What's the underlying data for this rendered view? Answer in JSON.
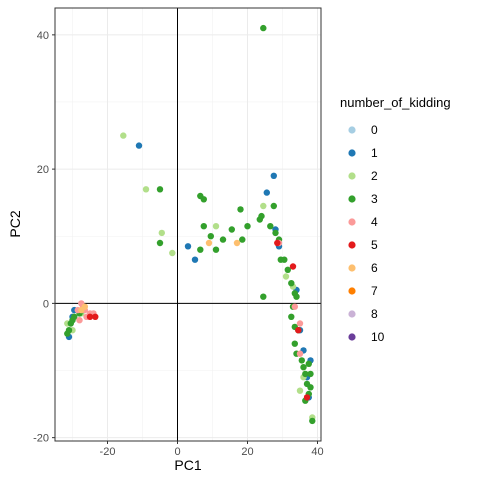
{
  "chart_data": {
    "type": "scatter",
    "title": "",
    "xlabel": "PC1",
    "ylabel": "PC2",
    "xlim": [
      -35,
      41
    ],
    "ylim": [
      -20.5,
      44
    ],
    "x_ticks": [
      -20,
      0,
      20,
      40
    ],
    "y_ticks": [
      -20,
      0,
      20,
      40
    ],
    "x_tick_labels": [
      "-20",
      "0",
      "20",
      "40"
    ],
    "y_tick_labels": [
      "-20",
      "0",
      "20",
      "40"
    ],
    "grid": true,
    "reference_lines": {
      "x": 0,
      "y": 0
    },
    "legend": {
      "title": "number_of_kidding",
      "position": "right"
    },
    "series": [
      {
        "name": "0",
        "color": "#a6cee3",
        "points": []
      },
      {
        "name": "1",
        "color": "#1f78b4",
        "points": [
          [
            -11,
            23.5
          ],
          [
            3,
            8.5
          ],
          [
            5,
            6.5
          ],
          [
            25.5,
            16.5
          ],
          [
            27.5,
            19
          ],
          [
            28,
            11
          ],
          [
            29,
            8.5
          ],
          [
            34,
            2
          ],
          [
            35,
            -4
          ],
          [
            36,
            -7
          ],
          [
            37,
            -11
          ],
          [
            37.5,
            -14
          ],
          [
            38,
            -8.5
          ],
          [
            -31,
            -5
          ],
          [
            -30,
            -2
          ],
          [
            -29.5,
            -1
          ]
        ]
      },
      {
        "name": "2",
        "color": "#b2df8a",
        "points": [
          [
            -15.5,
            25
          ],
          [
            -9,
            17
          ],
          [
            -4.5,
            10.5
          ],
          [
            -1.5,
            7.5
          ],
          [
            11,
            11.5
          ],
          [
            24.5,
            14.5
          ],
          [
            31,
            4
          ],
          [
            33,
            2.5
          ],
          [
            38.5,
            -17
          ],
          [
            36,
            -11
          ],
          [
            35,
            -13
          ],
          [
            -31.5,
            -3
          ],
          [
            -30,
            -4
          ],
          [
            -27.5,
            -1.5
          ]
        ]
      },
      {
        "name": "3",
        "color": "#33a02c",
        "points": [
          [
            24.5,
            41
          ],
          [
            -5,
            17
          ],
          [
            -5,
            9
          ],
          [
            6.5,
            16
          ],
          [
            7.5,
            15.5
          ],
          [
            7.5,
            11.5
          ],
          [
            6.5,
            8
          ],
          [
            9.5,
            10
          ],
          [
            11,
            8
          ],
          [
            13,
            9.5
          ],
          [
            15.5,
            11
          ],
          [
            18,
            14
          ],
          [
            18.5,
            9.5
          ],
          [
            20,
            11.5
          ],
          [
            23.5,
            12.5
          ],
          [
            24,
            13
          ],
          [
            26.5,
            11.5
          ],
          [
            27.5,
            14.5
          ],
          [
            28,
            10.5
          ],
          [
            29,
            9.5
          ],
          [
            30.5,
            6.5
          ],
          [
            29.5,
            6.5
          ],
          [
            31.5,
            5
          ],
          [
            32.5,
            3
          ],
          [
            33.5,
            1.5
          ],
          [
            34,
            1
          ],
          [
            33,
            -0.5
          ],
          [
            32.5,
            -2
          ],
          [
            33.5,
            -3.5
          ],
          [
            34.5,
            -4
          ],
          [
            33.5,
            -6
          ],
          [
            34,
            -7.5
          ],
          [
            35.5,
            -8.5
          ],
          [
            36,
            -9.5
          ],
          [
            36.5,
            -10.5
          ],
          [
            37,
            -12
          ],
          [
            38,
            -12.5
          ],
          [
            38,
            -10.5
          ],
          [
            37.5,
            -13.5
          ],
          [
            36.5,
            -14.5
          ],
          [
            37.5,
            -9
          ],
          [
            24.5,
            1
          ],
          [
            38.5,
            -17.5
          ],
          [
            -31,
            -4
          ],
          [
            -30.5,
            -3
          ],
          [
            -30,
            -2.5
          ],
          [
            -29.5,
            -2
          ],
          [
            -31.5,
            -4.5
          ],
          [
            -28,
            -1.5
          ],
          [
            -27,
            -1
          ]
        ]
      },
      {
        "name": "4",
        "color": "#fb9a99",
        "points": [
          [
            29,
            9
          ],
          [
            33.5,
            -0.5
          ],
          [
            35,
            -3
          ],
          [
            35,
            -7.5
          ],
          [
            -27.5,
            0
          ],
          [
            -27,
            -0.5
          ],
          [
            -26.5,
            -1
          ],
          [
            -26,
            -2
          ],
          [
            -25,
            -1.5
          ],
          [
            -24,
            -1.5
          ],
          [
            -28,
            -2.5
          ],
          [
            -28.5,
            -1
          ]
        ]
      },
      {
        "name": "5",
        "color": "#e31a1c",
        "points": [
          [
            28.5,
            9
          ],
          [
            33,
            5.5
          ],
          [
            34.5,
            -4
          ],
          [
            37,
            -14
          ],
          [
            -25,
            -2
          ],
          [
            -23.5,
            -2
          ]
        ]
      },
      {
        "name": "6",
        "color": "#fdbf6f",
        "points": [
          [
            9,
            9
          ],
          [
            17,
            9
          ],
          [
            -26.5,
            -0.5
          ],
          [
            -27.5,
            -1
          ]
        ]
      },
      {
        "name": "7",
        "color": "#ff7f00",
        "points": []
      },
      {
        "name": "8",
        "color": "#cab2d6",
        "points": []
      },
      {
        "name": "10",
        "color": "#6a3d9a",
        "points": []
      }
    ]
  }
}
